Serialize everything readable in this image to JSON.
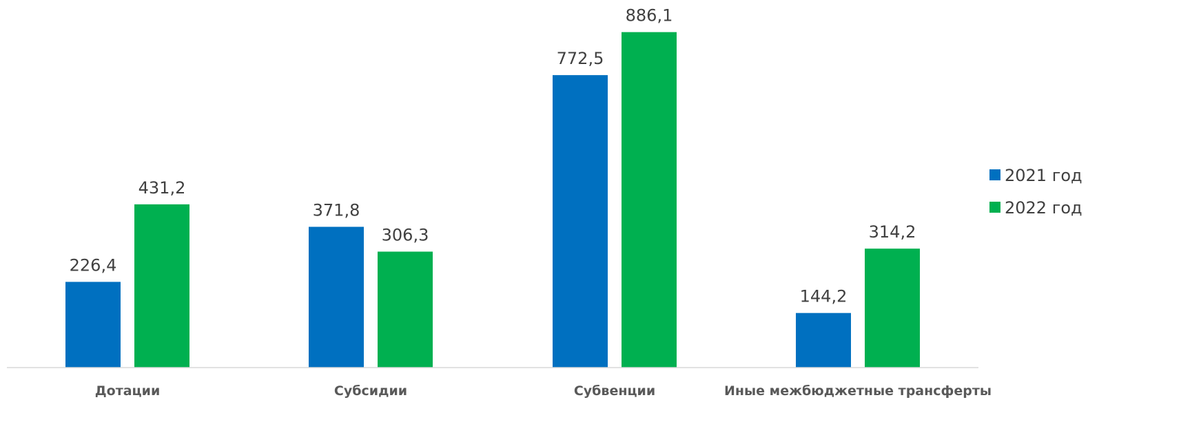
{
  "chart_data": {
    "type": "bar",
    "title": "",
    "xlabel": "",
    "ylabel": "",
    "categories": [
      "Дотации",
      "Субсидии",
      "Субвенции",
      "Иные межбюджетные трансферты"
    ],
    "series": [
      {
        "name": "2021 год",
        "color": "#0070C0",
        "values": [
          226.4,
          371.8,
          772.5,
          144.2
        ]
      },
      {
        "name": "2022 год",
        "color": "#00B050",
        "values": [
          431.2,
          306.3,
          886.1,
          314.2
        ]
      }
    ],
    "value_labels": {
      "2021 год": [
        "226,4",
        "371,8",
        "772,5",
        "144,2"
      ],
      "2022 год": [
        "431,2",
        "306,3",
        "886,1",
        "314,2"
      ]
    },
    "ylim": [
      0,
      1000
    ],
    "grid": false,
    "legend_position": "right",
    "axis_color": "#D9D9D9"
  }
}
